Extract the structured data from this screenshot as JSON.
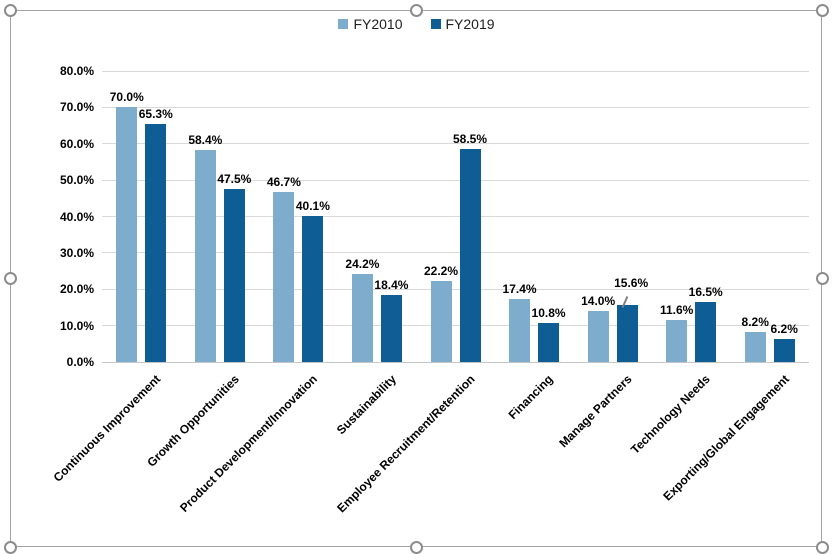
{
  "selection": {
    "frame_color": "#a3a3a3",
    "handles": [
      "top-left",
      "top-center",
      "top-right",
      "middle-left",
      "middle-right",
      "bottom-left",
      "bottom-center",
      "bottom-right"
    ]
  },
  "chart_data": {
    "type": "bar",
    "title": "",
    "xlabel": "",
    "ylabel": "",
    "categories": [
      "Continuous Improvement",
      "Growth Opportunities",
      "Product Development/Innovation",
      "Sustainability",
      "Employee Recruitment/Retention",
      "Financing",
      "Manage Partners",
      "Technology Needs",
      "Exporting/Global Engagement"
    ],
    "series": [
      {
        "name": "FY2010",
        "color": "#7eaccc",
        "values": [
          70.0,
          58.4,
          46.7,
          24.2,
          22.2,
          17.4,
          14.0,
          11.6,
          8.2
        ],
        "labels": [
          "70.0%",
          "58.4%",
          "46.7%",
          "24.2%",
          "22.2%",
          "17.4%",
          "14.0%",
          "11.6%",
          "8.2%"
        ]
      },
      {
        "name": "FY2019",
        "color": "#0e5e95",
        "values": [
          65.3,
          47.5,
          40.1,
          18.4,
          58.5,
          10.8,
          15.6,
          16.5,
          6.2
        ],
        "labels": [
          "65.3%",
          "47.5%",
          "40.1%",
          "18.4%",
          "58.5%",
          "10.8%",
          "15.6%",
          "16.5%",
          "6.2%"
        ]
      }
    ],
    "ylim": [
      0,
      80
    ],
    "ytick_step": 10,
    "ytick_labels": [
      "0.0%",
      "10.0%",
      "20.0%",
      "30.0%",
      "40.0%",
      "50.0%",
      "60.0%",
      "70.0%",
      "80.0%"
    ],
    "grid": true,
    "gridline_color": "#d9d9d9",
    "axis_line_color": "#c6c6c6",
    "legend_position": "top",
    "x_label_rotation_deg": 45,
    "annotations": [
      {
        "series_index": 1,
        "category_index": 6,
        "label": "15.6%",
        "moved": true,
        "dx": 4,
        "dy": -12,
        "leader_line": true
      }
    ]
  }
}
